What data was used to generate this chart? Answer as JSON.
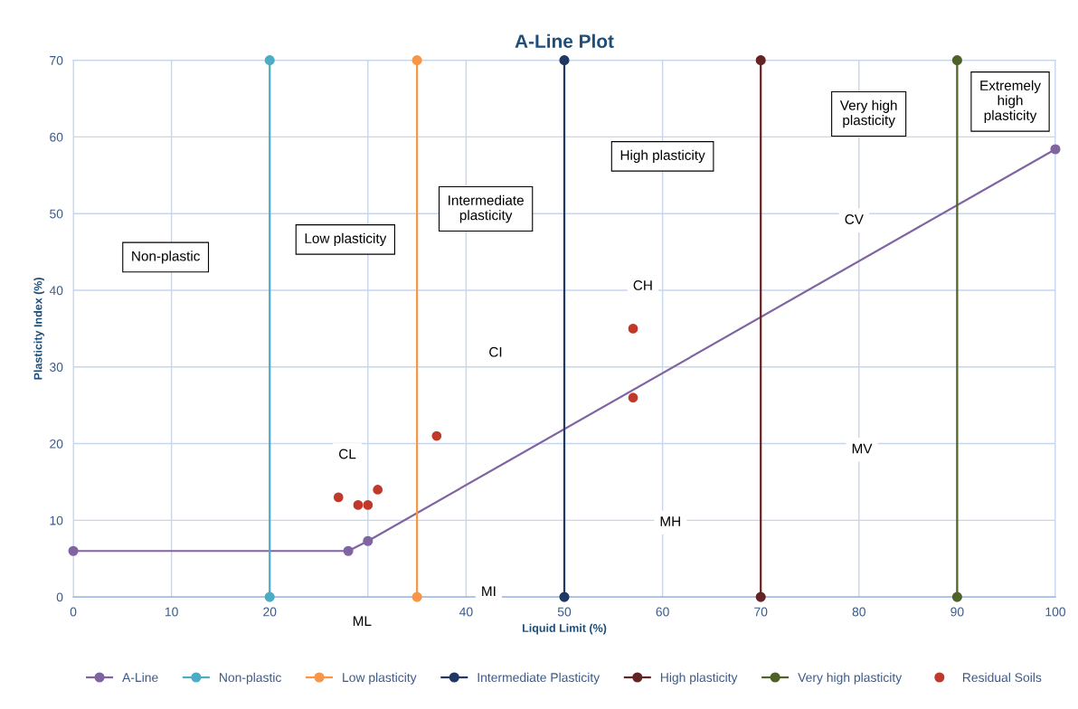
{
  "chart_data": {
    "type": "line",
    "title": "A-Line Plot",
    "xlabel": "Liquid Limit (%)",
    "ylabel": "Plasticity Index (%)",
    "xlim": [
      0,
      100
    ],
    "ylim": [
      0,
      70
    ],
    "xticks": [
      0,
      10,
      20,
      {
        "value": 30,
        "label": null
      },
      40,
      50,
      60,
      70,
      80,
      90,
      100
    ],
    "yticks": [
      0,
      10,
      20,
      30,
      40,
      50,
      60,
      70
    ],
    "grid": true,
    "legend": "bottom",
    "marker": "circle",
    "line_style": "solid",
    "series": [
      {
        "name": "A-Line",
        "color": "#8064a2",
        "x": [
          0,
          28,
          30,
          100
        ],
        "values": [
          6,
          6,
          7.3,
          58.4
        ]
      },
      {
        "name": "Non-plastic",
        "color": "#4bacc6",
        "x": [
          20,
          20
        ],
        "values": [
          0,
          70
        ]
      },
      {
        "name": "Low plasticity",
        "color": "#f79646",
        "x": [
          35,
          35
        ],
        "values": [
          0,
          70
        ]
      },
      {
        "name": "Intermediate Plasticity",
        "color": "#1f3864",
        "x": [
          50,
          50
        ],
        "values": [
          0,
          70
        ]
      },
      {
        "name": "High plasticity",
        "color": "#632523",
        "x": [
          70,
          70
        ],
        "values": [
          0,
          70
        ]
      },
      {
        "name": "Very high plasticity",
        "color": "#4f6228",
        "x": [
          90,
          90
        ],
        "values": [
          0,
          70
        ]
      },
      {
        "name": "Residual Soils",
        "type": "scatter",
        "color": "#c0392b",
        "x": [
          27,
          29,
          30,
          31,
          37,
          57,
          57
        ],
        "values": [
          13,
          12,
          12,
          14,
          21,
          35,
          26
        ]
      }
    ],
    "annotations": [
      "Non-plastic",
      "Low plasticity",
      "Intermediate\nplasticity",
      "High plasticity",
      "Very high\nplasticity",
      "Extremely\nhigh\nplasticity",
      "ML",
      {
        "text": "CL",
        "x": 27.9,
        "y": 18.5
      },
      {
        "text": "CI",
        "x": 43,
        "y": 31.8
      },
      {
        "text": "CH",
        "x": 58,
        "y": 40.5
      },
      {
        "text": "CV",
        "x": 79.5,
        "y": 49.1
      },
      {
        "text": "MI",
        "x": 42.3,
        "y": 0.6
      },
      {
        "text": "MH",
        "x": 60.8,
        "y": 9.7
      },
      {
        "text": "MV",
        "x": 80.3,
        "y": 19.2
      }
    ]
  }
}
